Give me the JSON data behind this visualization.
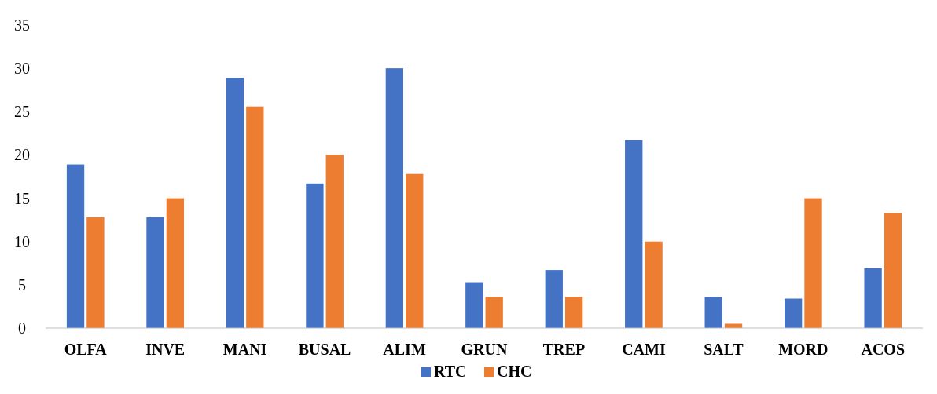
{
  "chart_data": {
    "type": "bar",
    "categories": [
      "OLFA",
      "INVE",
      "MANI",
      "BUSAL",
      "ALIM",
      "GRUN",
      "TREP",
      "CAMI",
      "SALT",
      "MORD",
      "ACOS"
    ],
    "series": [
      {
        "name": "RTC",
        "color": "#4472c4",
        "values": [
          18.9,
          12.8,
          28.9,
          16.7,
          30,
          5.3,
          6.7,
          21.7,
          3.6,
          3.4,
          6.9
        ]
      },
      {
        "name": "CHC",
        "color": "#ed7d31",
        "values": [
          12.8,
          15,
          25.6,
          20,
          17.8,
          3.6,
          3.6,
          10,
          0.5,
          15,
          13.3
        ]
      }
    ],
    "ylim": [
      0,
      35
    ],
    "yticks": [
      0,
      5,
      10,
      15,
      20,
      25,
      30,
      35
    ],
    "grid": false,
    "legend": "bottom"
  }
}
